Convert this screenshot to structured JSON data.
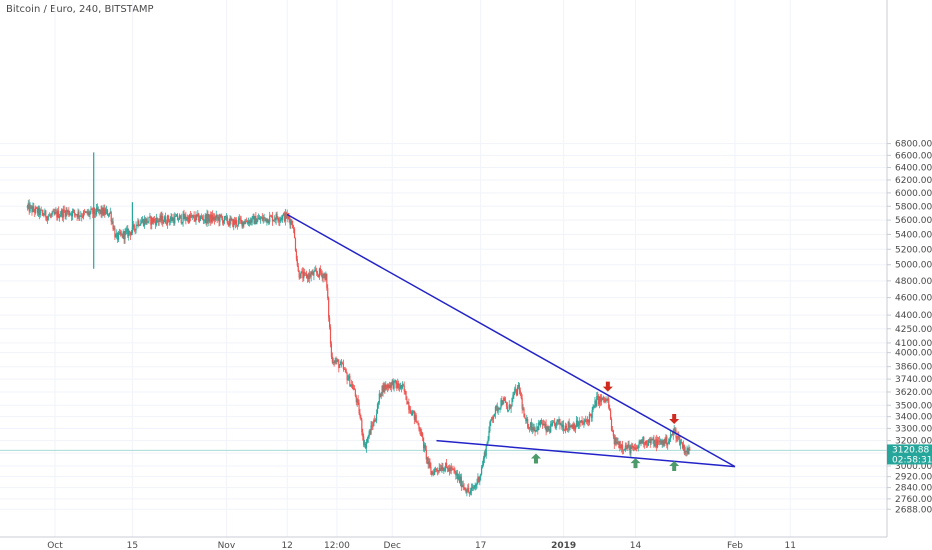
{
  "header": {
    "title": "Bitcoin / Euro, 240, BITSTAMP"
  },
  "price_badge": {
    "price": "3120.88",
    "countdown": "02:58:31",
    "value": 3120.88
  },
  "colors": {
    "up": "#26a69a",
    "down": "#ef5350",
    "trendline": "#2323c8",
    "up_marker": "#4c9a6a",
    "down_marker": "#d02a1f",
    "badge": "#26a69a",
    "grid": "#f0f3fa",
    "axis_text": "#4a4a4a"
  },
  "chart_data": {
    "type": "candlestick",
    "title": "Bitcoin / Euro, 240, BITSTAMP",
    "y_axis_position": "right",
    "ylim": [
      2640,
      6990
    ],
    "y_ticks": [
      2688,
      2760,
      2840,
      2920,
      3000,
      3100,
      3200,
      3300,
      3400,
      3500,
      3620,
      3740,
      3860,
      4000,
      4100,
      4250,
      4400,
      4600,
      4800,
      5000,
      5200,
      5400,
      5600,
      5800,
      6000,
      6200,
      6400,
      6600,
      6800
    ],
    "y_tick_labels": [
      "2688.00",
      "2760.00",
      "2840.00",
      "2920.00",
      "3000.00",
      "3100.00",
      "3200.00",
      "3300.00",
      "3400.00",
      "3500.00",
      "3620.00",
      "3740.00",
      "3860.00",
      "4000.00",
      "4100.00",
      "4250.00",
      "4400.00",
      "4600.00",
      "4800.00",
      "5000.00",
      "5200.00",
      "5400.00",
      "5600.00",
      "5800.00",
      "6000.00",
      "6200.00",
      "6400.00",
      "6600.00",
      "6800.00"
    ],
    "x_range": [
      "2018-09-26",
      "2019-02-22"
    ],
    "x_ticks": [
      {
        "date": "2018-10-01",
        "label": "Oct"
      },
      {
        "date": "2018-10-15",
        "label": "15"
      },
      {
        "date": "2018-11-01",
        "label": "Nov"
      },
      {
        "date": "2018-11-12",
        "label": "12"
      },
      {
        "date": "2018-11-21",
        "label": "12:00"
      },
      {
        "date": "2018-12-01",
        "label": "Dec"
      },
      {
        "date": "2018-12-17",
        "label": "17"
      },
      {
        "date": "2019-01-01",
        "label": "2019"
      },
      {
        "date": "2019-01-14",
        "label": "14"
      },
      {
        "date": "2019-02-01",
        "label": "Feb"
      },
      {
        "date": "2019-02-11",
        "label": "11"
      }
    ],
    "price_path": [
      [
        "2018-09-26",
        5780
      ],
      [
        "2018-09-30",
        5650
      ],
      [
        "2018-10-03",
        5720
      ],
      [
        "2018-10-06",
        5680
      ],
      [
        "2018-10-09",
        5720
      ],
      [
        "2018-10-11",
        5700
      ],
      [
        "2018-10-12",
        5350
      ],
      [
        "2018-10-15",
        5450
      ],
      [
        "2018-10-16",
        5580
      ],
      [
        "2018-10-20",
        5600
      ],
      [
        "2018-10-25",
        5630
      ],
      [
        "2018-10-31",
        5620
      ],
      [
        "2018-11-02",
        5560
      ],
      [
        "2018-11-06",
        5600
      ],
      [
        "2018-11-10",
        5640
      ],
      [
        "2018-11-12",
        5650
      ],
      [
        "2018-11-13",
        5550
      ],
      [
        "2018-11-14",
        4900
      ],
      [
        "2018-11-15",
        4850
      ],
      [
        "2018-11-18",
        4900
      ],
      [
        "2018-11-19",
        4850
      ],
      [
        "2018-11-20",
        3950
      ],
      [
        "2018-11-22",
        3850
      ],
      [
        "2018-11-24",
        3650
      ],
      [
        "2018-11-25",
        3450
      ],
      [
        "2018-11-26",
        3150
      ],
      [
        "2018-11-28",
        3400
      ],
      [
        "2018-11-29",
        3650
      ],
      [
        "2018-12-01",
        3700
      ],
      [
        "2018-12-03",
        3650
      ],
      [
        "2018-12-04",
        3500
      ],
      [
        "2018-12-06",
        3300
      ],
      [
        "2018-12-07",
        3100
      ],
      [
        "2018-12-08",
        2950
      ],
      [
        "2018-12-10",
        3000
      ],
      [
        "2018-12-12",
        2960
      ],
      [
        "2018-12-14",
        2850
      ],
      [
        "2018-12-15",
        2800
      ],
      [
        "2018-12-16",
        2850
      ],
      [
        "2018-12-17",
        2950
      ],
      [
        "2018-12-18",
        3150
      ],
      [
        "2018-12-19",
        3400
      ],
      [
        "2018-12-21",
        3550
      ],
      [
        "2018-12-22",
        3450
      ],
      [
        "2018-12-23",
        3600
      ],
      [
        "2018-12-24",
        3650
      ],
      [
        "2018-12-25",
        3350
      ],
      [
        "2018-12-27",
        3300
      ],
      [
        "2018-12-28",
        3350
      ],
      [
        "2018-12-29",
        3280
      ],
      [
        "2018-12-31",
        3350
      ],
      [
        "2019-01-01",
        3320
      ],
      [
        "2019-01-03",
        3330
      ],
      [
        "2019-01-05",
        3350
      ],
      [
        "2019-01-06",
        3420
      ],
      [
        "2019-01-07",
        3550
      ],
      [
        "2019-01-09",
        3540
      ],
      [
        "2019-01-10",
        3200
      ],
      [
        "2019-01-12",
        3150
      ],
      [
        "2019-01-14",
        3120
      ],
      [
        "2019-01-15",
        3200
      ],
      [
        "2019-01-18",
        3180
      ],
      [
        "2019-01-20",
        3200
      ],
      [
        "2019-01-21",
        3280
      ],
      [
        "2019-01-22",
        3200
      ],
      [
        "2019-01-23",
        3120
      ],
      [
        "2019-01-24",
        3110
      ]
    ],
    "spikes": [
      {
        "date": "2018-10-08",
        "high": 6650,
        "low": 4950
      },
      {
        "date": "2018-10-15",
        "high": 5860,
        "low": 5420
      }
    ],
    "trendlines": [
      {
        "from": [
          "2018-11-12",
          5680
        ],
        "to": [
          "2019-02-01",
          2995
        ]
      },
      {
        "from": [
          "2018-12-09",
          3200
        ],
        "to": [
          "2019-02-01",
          2995
        ]
      }
    ],
    "markers": [
      {
        "type": "up",
        "date": "2018-12-27",
        "value": 3058
      },
      {
        "type": "up",
        "date": "2019-01-14",
        "value": 3022
      },
      {
        "type": "up",
        "date": "2019-01-21",
        "value": 3000
      },
      {
        "type": "down",
        "date": "2019-01-09",
        "value": 3670
      },
      {
        "type": "down",
        "date": "2019-01-21",
        "value": 3380
      }
    ]
  }
}
